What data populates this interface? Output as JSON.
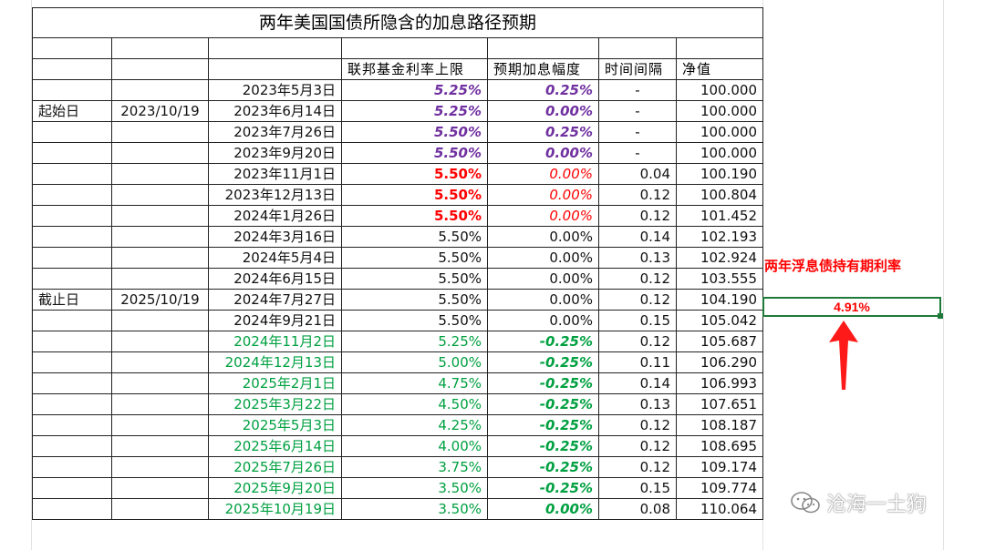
{
  "title": "两年美国国债所隐含的加息路径预期",
  "headers": [
    "联邦基金利率上限",
    "预期加息幅度",
    "时间间隔",
    "净值"
  ],
  "labels": {
    "start_label": "起始日",
    "start_date": "2023/10/19",
    "end_label": "截止日",
    "end_date": "2025/10/19"
  },
  "rows": [
    {
      "date": "2023年5月3日",
      "rate": "5.25%",
      "hike": "0.25%",
      "interval": "-",
      "nav": "100.000",
      "style": "purple"
    },
    {
      "date": "2023年6月14日",
      "rate": "5.25%",
      "hike": "0.00%",
      "interval": "-",
      "nav": "100.000",
      "style": "purple"
    },
    {
      "date": "2023年7月26日",
      "rate": "5.50%",
      "hike": "0.25%",
      "interval": "-",
      "nav": "100.000",
      "style": "purple"
    },
    {
      "date": "2023年9月20日",
      "rate": "5.50%",
      "hike": "0.00%",
      "interval": "-",
      "nav": "100.000",
      "style": "purple"
    },
    {
      "date": "2023年11月1日",
      "rate": "5.50%",
      "hike": "0.00%",
      "interval": "0.04",
      "nav": "100.190",
      "style": "red"
    },
    {
      "date": "2023年12月13日",
      "rate": "5.50%",
      "hike": "0.00%",
      "interval": "0.12",
      "nav": "100.804",
      "style": "red"
    },
    {
      "date": "2024年1月26日",
      "rate": "5.50%",
      "hike": "0.00%",
      "interval": "0.12",
      "nav": "101.452",
      "style": "red"
    },
    {
      "date": "2024年3月16日",
      "rate": "5.50%",
      "hike": "0.00%",
      "interval": "0.14",
      "nav": "102.193",
      "style": "black"
    },
    {
      "date": "2024年5月4日",
      "rate": "5.50%",
      "hike": "0.00%",
      "interval": "0.13",
      "nav": "102.924",
      "style": "black"
    },
    {
      "date": "2024年6月15日",
      "rate": "5.50%",
      "hike": "0.00%",
      "interval": "0.12",
      "nav": "103.555",
      "style": "black"
    },
    {
      "date": "2024年7月27日",
      "rate": "5.50%",
      "hike": "0.00%",
      "interval": "0.12",
      "nav": "104.190",
      "style": "black"
    },
    {
      "date": "2024年9月21日",
      "rate": "5.50%",
      "hike": "0.00%",
      "interval": "0.15",
      "nav": "105.042",
      "style": "black"
    },
    {
      "date": "2024年11月2日",
      "rate": "5.25%",
      "hike": "-0.25%",
      "interval": "0.12",
      "nav": "105.687",
      "style": "green"
    },
    {
      "date": "2024年12月13日",
      "rate": "5.00%",
      "hike": "-0.25%",
      "interval": "0.11",
      "nav": "106.290",
      "style": "green"
    },
    {
      "date": "2025年2月1日",
      "rate": "4.75%",
      "hike": "-0.25%",
      "interval": "0.14",
      "nav": "106.993",
      "style": "green"
    },
    {
      "date": "2025年3月22日",
      "rate": "4.50%",
      "hike": "-0.25%",
      "interval": "0.13",
      "nav": "107.651",
      "style": "green"
    },
    {
      "date": "2025年5月3日",
      "rate": "4.25%",
      "hike": "-0.25%",
      "interval": "0.12",
      "nav": "108.187",
      "style": "green"
    },
    {
      "date": "2025年6月14日",
      "rate": "4.00%",
      "hike": "-0.25%",
      "interval": "0.12",
      "nav": "108.695",
      "style": "green"
    },
    {
      "date": "2025年7月26日",
      "rate": "3.75%",
      "hike": "-0.25%",
      "interval": "0.12",
      "nav": "109.174",
      "style": "green"
    },
    {
      "date": "2025年9月20日",
      "rate": "3.50%",
      "hike": "-0.25%",
      "interval": "0.15",
      "nav": "109.774",
      "style": "green"
    },
    {
      "date": "2025年10月19日",
      "rate": "3.50%",
      "hike": "0.00%",
      "interval": "0.08",
      "nav": "110.064",
      "style": "green"
    }
  ],
  "side": {
    "label": "两年浮息债持有期利率",
    "value": "4.91%"
  },
  "watermark": "沧海一土狗",
  "colors": {
    "purple": "#7030a0",
    "red": "#ff0000",
    "green": "#00a040",
    "selection": "#1f7a3a"
  }
}
